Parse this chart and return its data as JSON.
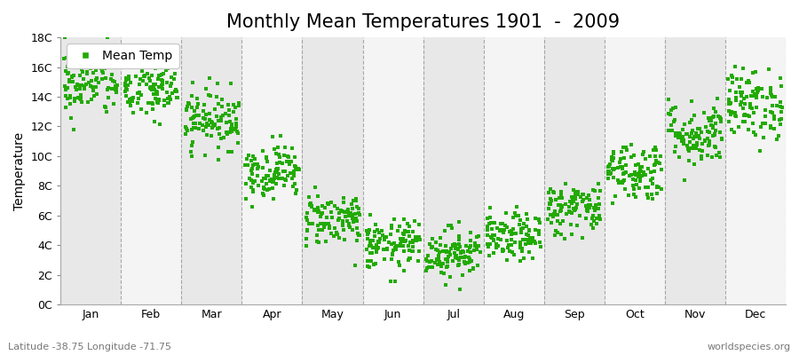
{
  "title": "Monthly Mean Temperatures 1901  -  2009",
  "ylabel": "Temperature",
  "subtitle": "Latitude -38.75 Longitude -71.75",
  "watermark": "worldspecies.org",
  "ylim": [
    0,
    18
  ],
  "ytick_labels": [
    "0C",
    "2C",
    "4C",
    "6C",
    "8C",
    "10C",
    "12C",
    "14C",
    "16C",
    "18C"
  ],
  "ytick_values": [
    0,
    2,
    4,
    6,
    8,
    10,
    12,
    14,
    16,
    18
  ],
  "months": [
    "Jan",
    "Feb",
    "Mar",
    "Apr",
    "May",
    "Jun",
    "Jul",
    "Aug",
    "Sep",
    "Oct",
    "Nov",
    "Dec"
  ],
  "monthly_means": [
    15.0,
    14.5,
    12.5,
    9.0,
    5.8,
    4.0,
    3.5,
    4.5,
    6.5,
    9.0,
    11.5,
    13.5
  ],
  "monthly_stds": [
    1.2,
    1.1,
    1.0,
    0.9,
    0.9,
    0.85,
    0.85,
    0.8,
    0.9,
    1.0,
    1.1,
    1.2
  ],
  "n_years": 109,
  "dot_color": "#22AA00",
  "dot_size": 9,
  "background_color": "#FFFFFF",
  "band_color_odd": "#E8E8E8",
  "band_color_even": "#F4F4F4",
  "dashed_line_color": "#888888",
  "title_fontsize": 15,
  "label_fontsize": 10,
  "tick_fontsize": 9,
  "seed": 42
}
